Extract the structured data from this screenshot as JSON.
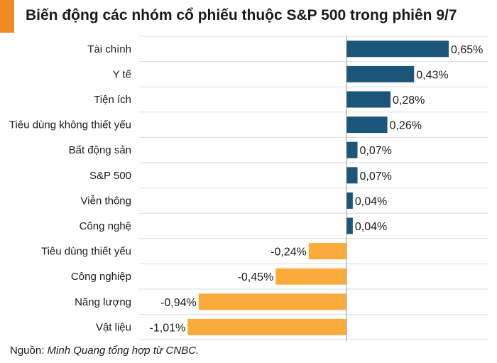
{
  "title": "Biến động các nhóm cổ phiếu thuộc S&P 500 trong phiên 9/7",
  "source": {
    "prefix": "Nguồn: ",
    "text": "Minh Quang tổng hợp từ CNBC."
  },
  "colors": {
    "accent": "#f08a24",
    "positive": "#1b5577",
    "negative": "#fbab3c"
  },
  "chart_data": {
    "type": "bar",
    "orientation": "horizontal",
    "categories": [
      "Tài chính",
      "Y tế",
      "Tiện ích",
      "Tiêu dùng không thiết yếu",
      "Bất động sản",
      "S&P 500",
      "Viễn thông",
      "Công nghệ",
      "Tiêu dùng thiết yếu",
      "Công nghiệp",
      "Năng lượng",
      "Vật liệu"
    ],
    "values": [
      0.65,
      0.43,
      0.28,
      0.26,
      0.07,
      0.07,
      0.04,
      0.04,
      -0.24,
      -0.45,
      -0.94,
      -1.01
    ],
    "labels": [
      "0,65%",
      "0,43%",
      "0,28%",
      "0,26%",
      "0,07%",
      "0,07%",
      "0,04%",
      "0,04%",
      "-0,24%",
      "-0,45%",
      "-0,94%",
      "-1,01%"
    ],
    "xlim": [
      -1.01,
      0.65
    ],
    "grid": true
  }
}
